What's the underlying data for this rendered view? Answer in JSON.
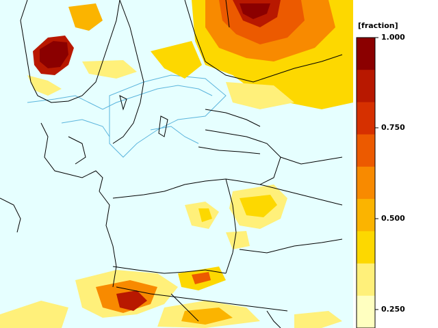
{
  "legend": {
    "unit_label": "[fraction]",
    "ticks": [
      {
        "value": "1.000"
      },
      {
        "value": "0.750"
      },
      {
        "value": "0.500"
      },
      {
        "value": "0.250"
      }
    ],
    "color_steps": [
      "#8b0000",
      "#b81800",
      "#d63000",
      "#ec5a00",
      "#f88a00",
      "#fbb400",
      "#fdd800",
      "#fff07a",
      "#ffffc0"
    ]
  },
  "map": {
    "background_color": "#e6ffff",
    "border_color": "#000000",
    "coast_color": "#5ab4dc"
  }
}
